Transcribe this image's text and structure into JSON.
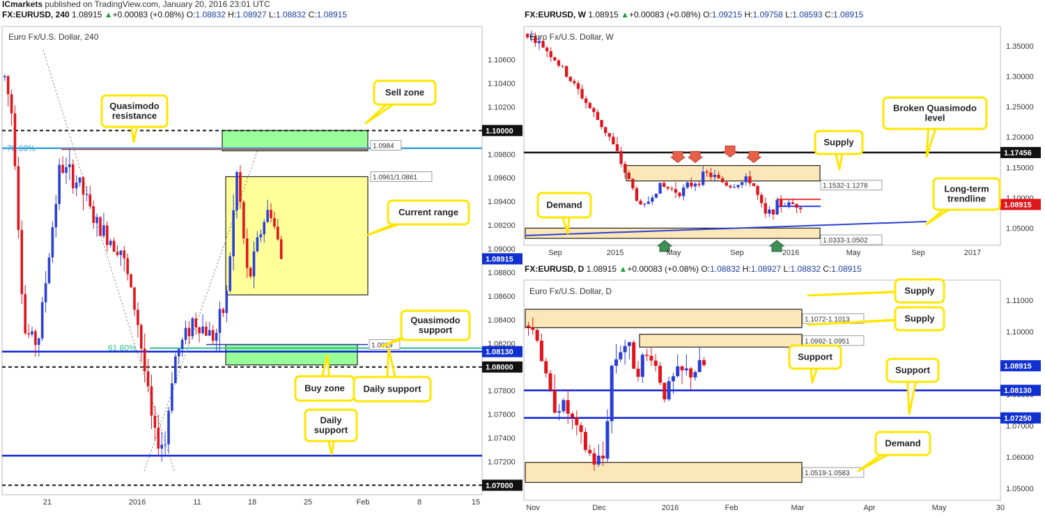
{
  "banner": {
    "brand": "ICmarkets",
    "rest": " published on TradingView.com, January 20, 2016 23:01 UTC"
  },
  "colors": {
    "bull": "#2a3fd6",
    "bear": "#e0141b",
    "zone_yellow": "#ffff99",
    "zone_green": "#99ff99",
    "zone_tan": "#fbe7b8",
    "support_blue": "#0a1fd6",
    "dashed": "#111111",
    "callout_border": "#ffe600",
    "price_tag": "#1030d0"
  },
  "panes": [
    {
      "id": "h4",
      "header": {
        "symbol": "FX:EURUSD, 240",
        "price": "1.08915",
        "change": "+0.00083 (+0.08%)",
        "o": "1.08832",
        "h": "1.08927",
        "l": "1.08832",
        "c": "1.08915"
      },
      "inner_title": "Euro Fx/U.S. Dollar, 240",
      "y_ticks": [
        "1.10600",
        "1.10400",
        "1.10200",
        "1.10000",
        "1.09800",
        "1.09600",
        "1.09400",
        "1.09200",
        "1.09000",
        "1.08800",
        "1.08600",
        "1.08400",
        "1.08200",
        "1.08000",
        "1.07800",
        "1.07600",
        "1.07400",
        "1.07200",
        "1.07000"
      ],
      "x_ticks": [
        "21",
        "2016",
        "11",
        "18",
        "25",
        "Feb",
        "8",
        "15"
      ],
      "price_tags": [
        "1.08915",
        "1.08130"
      ],
      "dark_tags": [
        "1.10000",
        "1.08000",
        "1.07000"
      ],
      "box_labels": [
        "1.0984",
        "1.0961/1.0861",
        "1.0819"
      ],
      "fib_labels": [
        "78.60%",
        "61.80%"
      ],
      "callouts": [
        "Sell zone",
        "Quasimodo resistance",
        "Current range",
        "Quasimodo support",
        "Buy zone",
        "Daily support",
        "Daily support"
      ]
    },
    {
      "id": "weekly",
      "header": {
        "symbol": "FX:EURUSD, W",
        "price": "1.08915",
        "change": "+0.00083 (+0.08%)",
        "o": "1.09215",
        "h": "1.09758",
        "l": "1.08593",
        "c": "1.08915"
      },
      "inner_title": "Euro Fx/U.S. Dollar, W",
      "y_ticks": [
        "1.35000",
        "1.30000",
        "1.25000",
        "1.20000",
        "1.15000",
        "1.10000",
        "1.05000"
      ],
      "x_ticks": [
        "Sep",
        "2015",
        "May",
        "Sep",
        "2016",
        "May",
        "Sep",
        "2017"
      ],
      "price_tags": [
        "1.08915"
      ],
      "dark_tags": [
        "1.17456"
      ],
      "box_labels": [
        "1.1532-1.1278",
        "1.0333-1.0502"
      ],
      "callouts": [
        "Broken Quasimodo level",
        "Supply",
        "Demand",
        "Long-term trendline"
      ]
    },
    {
      "id": "daily",
      "header": {
        "symbol": "FX:EURUSD, D",
        "price": "1.08915",
        "change": "+0.00083 (+0.08%)",
        "o": "1.08832",
        "h": "1.08927",
        "l": "1.08832",
        "c": "1.08915"
      },
      "inner_title": "Euro Fx/U.S. Dollar, D",
      "y_ticks": [
        "1.11000",
        "1.10000",
        "1.09000",
        "1.08000",
        "1.07000",
        "1.06000",
        "1.05000"
      ],
      "x_ticks": [
        "Nov",
        "Dec",
        "2016",
        "Feb",
        "Mar",
        "Apr",
        "May",
        "30"
      ],
      "price_tags": [
        "1.08915",
        "1.08130",
        "1.07250"
      ],
      "box_labels": [
        "1.1072-1.1013",
        "1.0992-1.0951",
        "1.0519-1.0583"
      ],
      "callouts": [
        "Supply",
        "Supply",
        "Support",
        "Support",
        "Demand"
      ]
    }
  ],
  "chart_data": [
    {
      "type": "candlestick",
      "title": "Euro Fx/U.S. Dollar, 240",
      "symbol": "FX:EURUSD",
      "timeframe": "240",
      "ylim": [
        1.0692,
        1.1088
      ],
      "last_price": 1.08915,
      "levels": {
        "quasimodo_resistance": 1.0984,
        "round_1_10": 1.1,
        "range_high": 1.0961,
        "range_low": 1.0861,
        "quasimodo_support": 1.0819,
        "daily_support_1": 1.0813,
        "round_1_08": 1.08,
        "daily_support_2": 1.0725,
        "round_1_07": 1.07
      },
      "zones": [
        {
          "name": "Sell zone",
          "from": 1.0984,
          "to": 1.1
        },
        {
          "name": "Current range",
          "from": 1.0861,
          "to": 1.0961
        },
        {
          "name": "Buy zone",
          "from": 1.08,
          "to": 1.0819
        }
      ],
      "fibonacci": [
        {
          "label": "78.60%",
          "price": 1.0985
        },
        {
          "label": "61.80%",
          "price": 1.0816
        }
      ]
    },
    {
      "type": "candlestick",
      "title": "Euro Fx/U.S. Dollar, W",
      "symbol": "FX:EURUSD",
      "timeframe": "W",
      "ylim": [
        1.022,
        1.382
      ],
      "last_price": 1.08915,
      "levels": {
        "broken_quasimodo": 1.17456
      },
      "zones": [
        {
          "name": "Supply",
          "from": 1.1278,
          "to": 1.1532
        },
        {
          "name": "Demand",
          "from": 1.0333,
          "to": 1.0502
        }
      ]
    },
    {
      "type": "candlestick",
      "title": "Euro Fx/U.S. Dollar, D",
      "symbol": "FX:EURUSD",
      "timeframe": "D",
      "ylim": [
        1.0462,
        1.1165
      ],
      "last_price": 1.08915,
      "levels": {
        "support_1": 1.0813,
        "support_2": 1.0725
      },
      "zones": [
        {
          "name": "Supply",
          "from": 1.1013,
          "to": 1.1072
        },
        {
          "name": "Supply",
          "from": 1.0951,
          "to": 1.0992
        },
        {
          "name": "Demand",
          "from": 1.0519,
          "to": 1.0583
        }
      ]
    }
  ]
}
